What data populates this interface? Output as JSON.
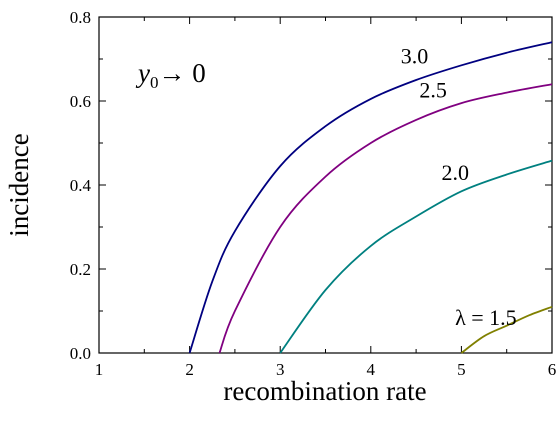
{
  "chart_data": {
    "type": "line",
    "xlabel": "recombination rate",
    "ylabel": "incidence",
    "xlim": [
      1,
      6
    ],
    "ylim": [
      0.0,
      0.8
    ],
    "xticks": [
      1,
      2,
      3,
      4,
      5,
      6
    ],
    "xtick_labels": [
      "1",
      "2",
      "3",
      "4",
      "5",
      "6"
    ],
    "yticks": [
      0.0,
      0.2,
      0.4,
      0.6,
      0.8
    ],
    "ytick_labels": [
      "0.0",
      "0.2",
      "0.4",
      "0.6",
      "0.8"
    ],
    "grid": false,
    "legend": "none",
    "annotation": {
      "var": "y",
      "sub": "0",
      "rest": "→ 0"
    },
    "series": [
      {
        "label": "3.0",
        "color": "#000080",
        "x": [
          2.0,
          2.25,
          2.5,
          3.0,
          3.5,
          4.0,
          4.5,
          5.0,
          5.5,
          6.0
        ],
        "y": [
          0.0,
          0.17,
          0.29,
          0.445,
          0.54,
          0.605,
          0.65,
          0.685,
          0.715,
          0.74
        ]
      },
      {
        "label": "2.5",
        "color": "#800080",
        "x": [
          2.33,
          2.5,
          3.0,
          3.5,
          4.0,
          4.5,
          5.0,
          5.5,
          6.0
        ],
        "y": [
          0.0,
          0.1,
          0.3,
          0.42,
          0.5,
          0.555,
          0.595,
          0.62,
          0.64
        ]
      },
      {
        "label": "2.0",
        "color": "#008080",
        "x": [
          3.0,
          3.5,
          4.0,
          4.5,
          5.0,
          5.5,
          6.0
        ],
        "y": [
          0.0,
          0.15,
          0.255,
          0.325,
          0.385,
          0.425,
          0.458
        ]
      },
      {
        "label": "λ = 1.5",
        "color": "#808000",
        "x": [
          5.0,
          5.25,
          5.5,
          5.75,
          6.0
        ],
        "y": [
          0.0,
          0.04,
          0.065,
          0.09,
          0.11
        ]
      }
    ]
  }
}
